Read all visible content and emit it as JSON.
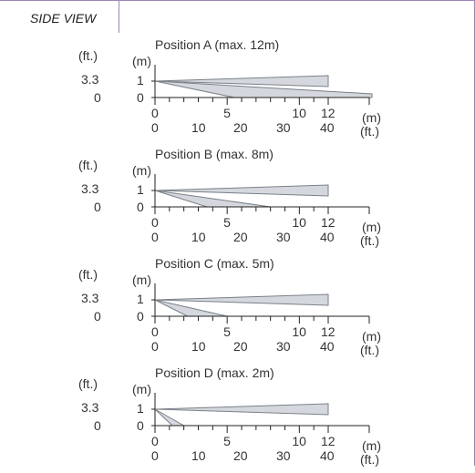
{
  "title": "SIDE VIEW",
  "axis": {
    "height_unit_ft": "(ft.)",
    "height_unit_m": "(m)",
    "height_ft_value": "3.3",
    "height_ft_zero": "0",
    "height_m_value": "1",
    "height_m_zero": "0",
    "m_ticks": [
      "0",
      "5",
      "10",
      "12"
    ],
    "ft_ticks": [
      "0",
      "10",
      "20",
      "30",
      "40"
    ],
    "m_unit": "(m)",
    "ft_unit": "(ft.)"
  },
  "panels": [
    {
      "label": "Position  A (max.  12m)",
      "max_m": 12
    },
    {
      "label": "Position  B (max.  8m)",
      "max_m": 8
    },
    {
      "label": "Position  C (max.  5m)",
      "max_m": 5
    },
    {
      "label": "Position  D (max.  2m)",
      "max_m": 2
    }
  ],
  "colors": {
    "beam_fill": "#d4d8de",
    "beam_stroke": "#7a8088",
    "frame": "#a084b4"
  }
}
